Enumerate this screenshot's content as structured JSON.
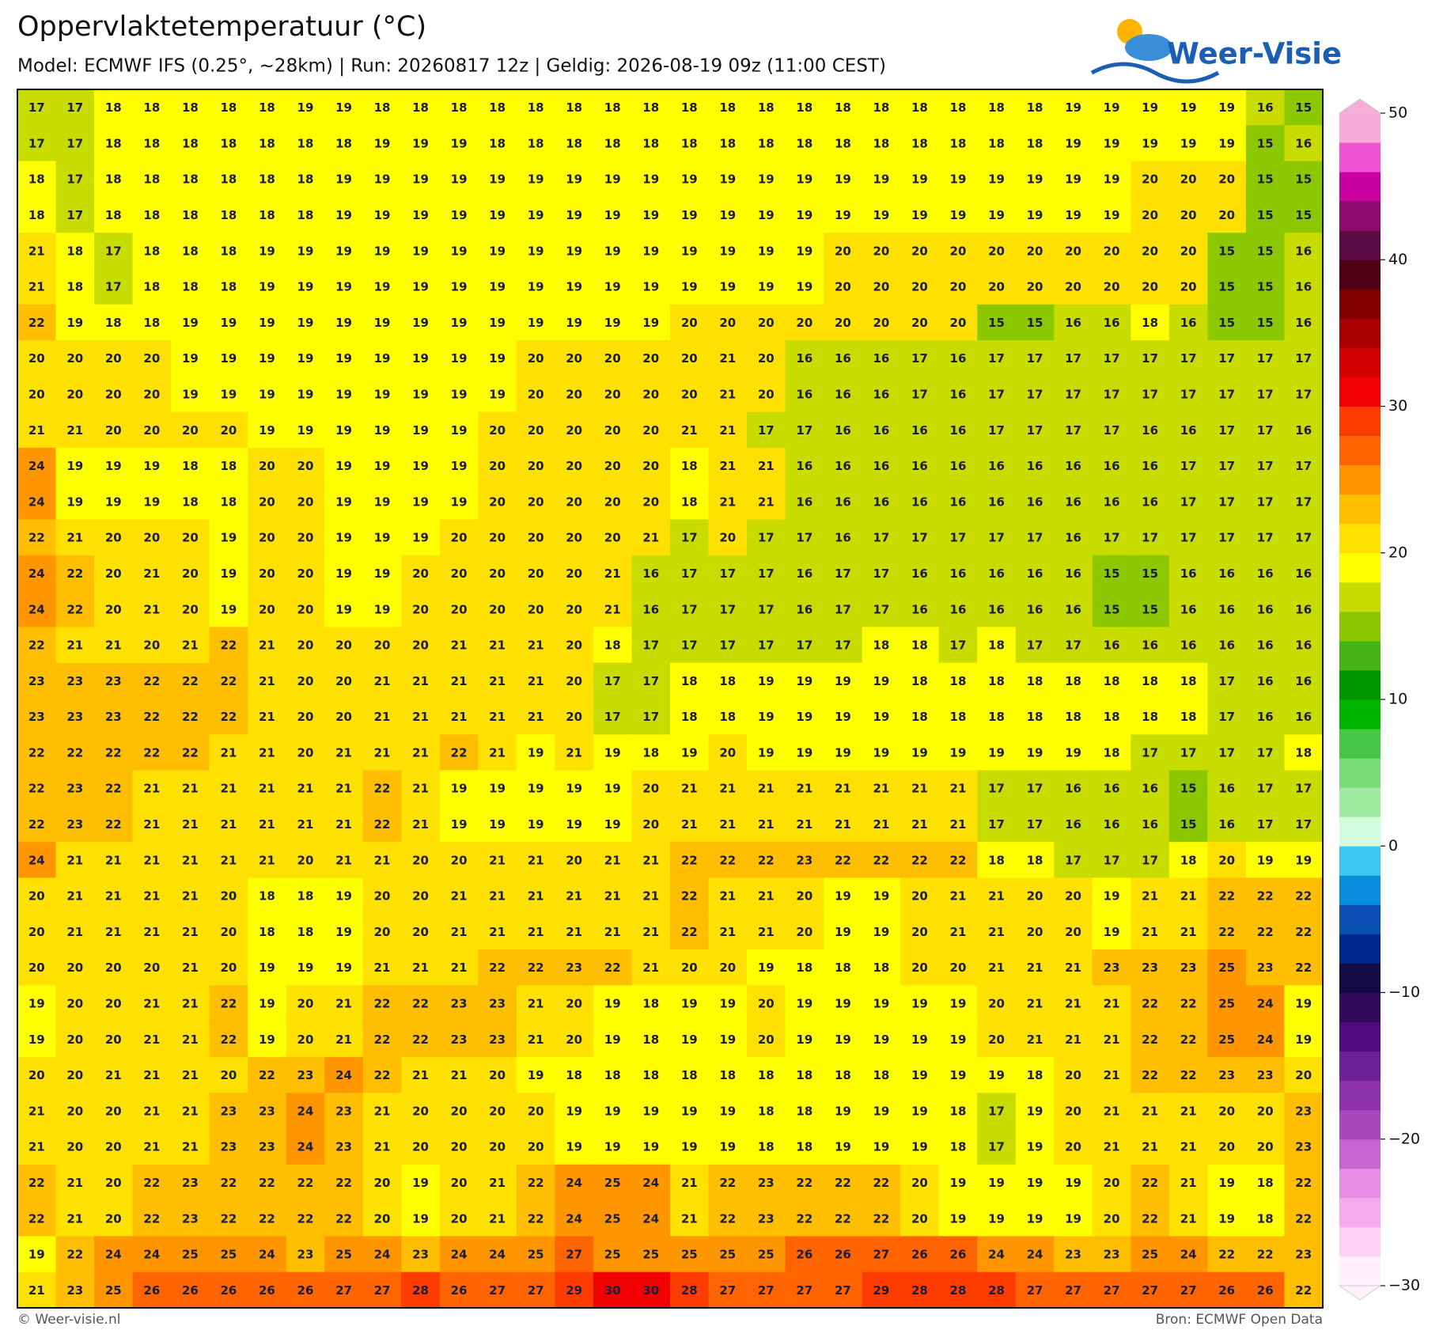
{
  "header": {
    "title": "Oppervlaktetemperatuur (°C)",
    "subtitle": "Model: ECMWF IFS (0.25°, ~28km)  |  Run: 20260817 12z  |  Geldig: 2026-08-19 09z (11:00 CEST)",
    "logo": "Weer-Visie"
  },
  "map": {
    "type": "heatmap",
    "values": [
      [
        17,
        17,
        18,
        18,
        18,
        18,
        18,
        19,
        19,
        18,
        18,
        18,
        18,
        18,
        18,
        18,
        18,
        18,
        18,
        18,
        18,
        18,
        18,
        18,
        18,
        18,
        18,
        19,
        19,
        19,
        19,
        19,
        16,
        15
      ],
      [
        17,
        17,
        18,
        18,
        18,
        18,
        18,
        18,
        18,
        19,
        19,
        19,
        18,
        18,
        18,
        18,
        18,
        18,
        18,
        18,
        18,
        18,
        18,
        18,
        18,
        18,
        18,
        19,
        19,
        19,
        19,
        19,
        15,
        16
      ],
      [
        18,
        17,
        18,
        18,
        18,
        18,
        18,
        18,
        19,
        19,
        19,
        19,
        19,
        19,
        19,
        19,
        19,
        19,
        19,
        19,
        19,
        19,
        19,
        19,
        19,
        19,
        19,
        19,
        19,
        20,
        20,
        20,
        15,
        15
      ],
      [
        18,
        17,
        18,
        18,
        18,
        18,
        18,
        18,
        19,
        19,
        19,
        19,
        19,
        19,
        19,
        19,
        19,
        19,
        19,
        19,
        19,
        19,
        19,
        19,
        19,
        19,
        19,
        19,
        19,
        20,
        20,
        20,
        15,
        15
      ],
      [
        21,
        18,
        17,
        18,
        18,
        18,
        19,
        19,
        19,
        19,
        19,
        19,
        19,
        19,
        19,
        19,
        19,
        19,
        19,
        19,
        19,
        20,
        20,
        20,
        20,
        20,
        20,
        20,
        20,
        20,
        20,
        15,
        15,
        16
      ],
      [
        21,
        18,
        17,
        18,
        18,
        18,
        19,
        19,
        19,
        19,
        19,
        19,
        19,
        19,
        19,
        19,
        19,
        19,
        19,
        19,
        19,
        20,
        20,
        20,
        20,
        20,
        20,
        20,
        20,
        20,
        20,
        15,
        15,
        16
      ],
      [
        22,
        19,
        18,
        18,
        19,
        19,
        19,
        19,
        19,
        19,
        19,
        19,
        19,
        19,
        19,
        19,
        19,
        20,
        20,
        20,
        20,
        20,
        20,
        20,
        20,
        15,
        15,
        16,
        16,
        18,
        16,
        15,
        15,
        16
      ],
      [
        20,
        20,
        20,
        20,
        19,
        19,
        19,
        19,
        19,
        19,
        19,
        19,
        19,
        20,
        20,
        20,
        20,
        20,
        21,
        20,
        16,
        16,
        16,
        17,
        16,
        17,
        17,
        17,
        17,
        17,
        17,
        17,
        17,
        17
      ],
      [
        20,
        20,
        20,
        20,
        19,
        19,
        19,
        19,
        19,
        19,
        19,
        19,
        19,
        20,
        20,
        20,
        20,
        20,
        21,
        20,
        16,
        16,
        16,
        17,
        16,
        17,
        17,
        17,
        17,
        17,
        17,
        17,
        17,
        17
      ],
      [
        21,
        21,
        20,
        20,
        20,
        20,
        19,
        19,
        19,
        19,
        19,
        19,
        20,
        20,
        20,
        20,
        20,
        21,
        21,
        17,
        17,
        16,
        16,
        16,
        16,
        17,
        17,
        17,
        17,
        16,
        16,
        17,
        17,
        16
      ],
      [
        24,
        19,
        19,
        19,
        18,
        18,
        20,
        20,
        19,
        19,
        19,
        19,
        20,
        20,
        20,
        20,
        20,
        18,
        21,
        21,
        16,
        16,
        16,
        16,
        16,
        16,
        16,
        16,
        16,
        16,
        17,
        17,
        17,
        17
      ],
      [
        24,
        19,
        19,
        19,
        18,
        18,
        20,
        20,
        19,
        19,
        19,
        19,
        20,
        20,
        20,
        20,
        20,
        18,
        21,
        21,
        16,
        16,
        16,
        16,
        16,
        16,
        16,
        16,
        16,
        16,
        17,
        17,
        17,
        17
      ],
      [
        22,
        21,
        20,
        20,
        20,
        19,
        20,
        20,
        19,
        19,
        19,
        20,
        20,
        20,
        20,
        20,
        21,
        17,
        20,
        17,
        17,
        16,
        17,
        17,
        17,
        17,
        17,
        16,
        17,
        17,
        17,
        17,
        17,
        17
      ],
      [
        24,
        22,
        20,
        21,
        20,
        19,
        20,
        20,
        19,
        19,
        20,
        20,
        20,
        20,
        20,
        21,
        16,
        17,
        17,
        17,
        16,
        17,
        17,
        16,
        16,
        16,
        16,
        16,
        15,
        15,
        16,
        16,
        16,
        16
      ],
      [
        24,
        22,
        20,
        21,
        20,
        19,
        20,
        20,
        19,
        19,
        20,
        20,
        20,
        20,
        20,
        21,
        16,
        17,
        17,
        17,
        16,
        17,
        17,
        16,
        16,
        16,
        16,
        16,
        15,
        15,
        16,
        16,
        16,
        16
      ],
      [
        22,
        21,
        21,
        20,
        21,
        22,
        21,
        20,
        20,
        20,
        20,
        21,
        21,
        21,
        20,
        18,
        17,
        17,
        17,
        17,
        17,
        17,
        18,
        18,
        17,
        18,
        17,
        17,
        16,
        16,
        16,
        16,
        16,
        16
      ],
      [
        23,
        23,
        23,
        22,
        22,
        22,
        21,
        20,
        20,
        21,
        21,
        21,
        21,
        21,
        20,
        17,
        17,
        18,
        18,
        19,
        19,
        19,
        19,
        18,
        18,
        18,
        18,
        18,
        18,
        18,
        18,
        17,
        16,
        16
      ],
      [
        23,
        23,
        23,
        22,
        22,
        22,
        21,
        20,
        20,
        21,
        21,
        21,
        21,
        21,
        20,
        17,
        17,
        18,
        18,
        19,
        19,
        19,
        19,
        18,
        18,
        18,
        18,
        18,
        18,
        18,
        18,
        17,
        16,
        16
      ],
      [
        22,
        22,
        22,
        22,
        22,
        21,
        21,
        20,
        21,
        21,
        21,
        22,
        21,
        19,
        21,
        19,
        18,
        19,
        20,
        19,
        19,
        19,
        19,
        19,
        19,
        19,
        19,
        19,
        18,
        17,
        17,
        17,
        17,
        18
      ],
      [
        22,
        23,
        22,
        21,
        21,
        21,
        21,
        21,
        21,
        22,
        21,
        19,
        19,
        19,
        19,
        19,
        20,
        21,
        21,
        21,
        21,
        21,
        21,
        21,
        21,
        17,
        17,
        16,
        16,
        16,
        15,
        16,
        17,
        17
      ],
      [
        22,
        23,
        22,
        21,
        21,
        21,
        21,
        21,
        21,
        22,
        21,
        19,
        19,
        19,
        19,
        19,
        20,
        21,
        21,
        21,
        21,
        21,
        21,
        21,
        21,
        17,
        17,
        16,
        16,
        16,
        15,
        16,
        17,
        17
      ],
      [
        24,
        21,
        21,
        21,
        21,
        21,
        21,
        20,
        21,
        21,
        20,
        20,
        21,
        21,
        20,
        21,
        21,
        22,
        22,
        22,
        23,
        22,
        22,
        22,
        22,
        18,
        18,
        17,
        17,
        17,
        18,
        20,
        19,
        19
      ],
      [
        20,
        21,
        21,
        21,
        21,
        20,
        18,
        18,
        19,
        20,
        20,
        21,
        21,
        21,
        21,
        21,
        21,
        22,
        21,
        21,
        20,
        19,
        19,
        20,
        21,
        21,
        20,
        20,
        19,
        21,
        21,
        22,
        22,
        22
      ],
      [
        20,
        21,
        21,
        21,
        21,
        20,
        18,
        18,
        19,
        20,
        20,
        21,
        21,
        21,
        21,
        21,
        21,
        22,
        21,
        21,
        20,
        19,
        19,
        20,
        21,
        21,
        20,
        20,
        19,
        21,
        21,
        22,
        22,
        22
      ],
      [
        20,
        20,
        20,
        20,
        21,
        20,
        19,
        19,
        19,
        21,
        21,
        21,
        22,
        22,
        23,
        22,
        21,
        20,
        20,
        19,
        18,
        18,
        18,
        20,
        20,
        21,
        21,
        21,
        23,
        23,
        23,
        25,
        23,
        22
      ],
      [
        19,
        20,
        20,
        21,
        21,
        22,
        19,
        20,
        21,
        22,
        22,
        23,
        23,
        21,
        20,
        19,
        18,
        19,
        19,
        20,
        19,
        19,
        19,
        19,
        19,
        20,
        21,
        21,
        21,
        22,
        22,
        25,
        24,
        19
      ],
      [
        19,
        20,
        20,
        21,
        21,
        22,
        19,
        20,
        21,
        22,
        22,
        23,
        23,
        21,
        20,
        19,
        18,
        19,
        19,
        20,
        19,
        19,
        19,
        19,
        19,
        20,
        21,
        21,
        21,
        22,
        22,
        25,
        24,
        19
      ],
      [
        20,
        20,
        21,
        21,
        21,
        20,
        22,
        23,
        24,
        22,
        21,
        21,
        20,
        19,
        18,
        18,
        18,
        18,
        18,
        18,
        18,
        18,
        18,
        19,
        19,
        19,
        18,
        20,
        21,
        22,
        22,
        23,
        23,
        20
      ],
      [
        21,
        20,
        20,
        21,
        21,
        23,
        23,
        24,
        23,
        21,
        20,
        20,
        20,
        20,
        19,
        19,
        19,
        19,
        19,
        18,
        18,
        19,
        19,
        19,
        18,
        17,
        19,
        20,
        21,
        21,
        21,
        20,
        20,
        23
      ],
      [
        21,
        20,
        20,
        21,
        21,
        23,
        23,
        24,
        23,
        21,
        20,
        20,
        20,
        20,
        19,
        19,
        19,
        19,
        19,
        18,
        18,
        19,
        19,
        19,
        18,
        17,
        19,
        20,
        21,
        21,
        21,
        20,
        20,
        23
      ],
      [
        22,
        21,
        20,
        22,
        23,
        22,
        22,
        22,
        22,
        20,
        19,
        20,
        21,
        22,
        24,
        25,
        24,
        21,
        22,
        23,
        22,
        22,
        22,
        20,
        19,
        19,
        19,
        19,
        20,
        22,
        21,
        19,
        18,
        22
      ],
      [
        22,
        21,
        20,
        22,
        23,
        22,
        22,
        22,
        22,
        20,
        19,
        20,
        21,
        22,
        24,
        25,
        24,
        21,
        22,
        23,
        22,
        22,
        22,
        20,
        19,
        19,
        19,
        19,
        20,
        22,
        21,
        19,
        18,
        22
      ],
      [
        19,
        22,
        24,
        24,
        25,
        25,
        24,
        23,
        25,
        24,
        23,
        24,
        24,
        25,
        27,
        25,
        25,
        25,
        25,
        25,
        26,
        26,
        27,
        26,
        26,
        24,
        24,
        23,
        23,
        25,
        24,
        22,
        22,
        23
      ],
      [
        21,
        23,
        25,
        26,
        26,
        26,
        26,
        26,
        27,
        27,
        28,
        26,
        27,
        27,
        29,
        30,
        30,
        28,
        27,
        27,
        27,
        27,
        29,
        28,
        28,
        28,
        27,
        27,
        27,
        27,
        27,
        26,
        26,
        22
      ]
    ]
  },
  "colorbar": {
    "lim": [
      -30,
      50
    ],
    "ticks": [
      50,
      40,
      30,
      20,
      10,
      0,
      {
        "value": -10,
        "label": "−10"
      },
      {
        "value": -20,
        "label": "−20"
      },
      {
        "value": -30,
        "label": "−30"
      }
    ],
    "colors": [
      "#fff0fa",
      "#ffd2f5",
      "#f5aaf0",
      "#e68ce6",
      "#c864d2",
      "#aa46be",
      "#8c32aa",
      "#6e1e96",
      "#500a82",
      "#320a5a",
      "#140a46",
      "#00288c",
      "#0a50b4",
      "#0a8cdc",
      "#3cc8f0",
      "#d2fadc",
      "#a0eba0",
      "#78dc78",
      "#46c846",
      "#00b400",
      "#009600",
      "#46b414",
      "#8cc800",
      "#c8dc00",
      "#ffff00",
      "#ffe100",
      "#ffbe00",
      "#ff9600",
      "#ff6400",
      "#ff3c00",
      "#f00000",
      "#d20000",
      "#aa0000",
      "#820000",
      "#500014",
      "#5a0a46",
      "#8c0a6e",
      "#c800a0",
      "#f050d2",
      "#f8aad8"
    ]
  },
  "footer": {
    "left": "© Weer-visie.nl",
    "right": "Bron: ECMWF Open Data"
  }
}
